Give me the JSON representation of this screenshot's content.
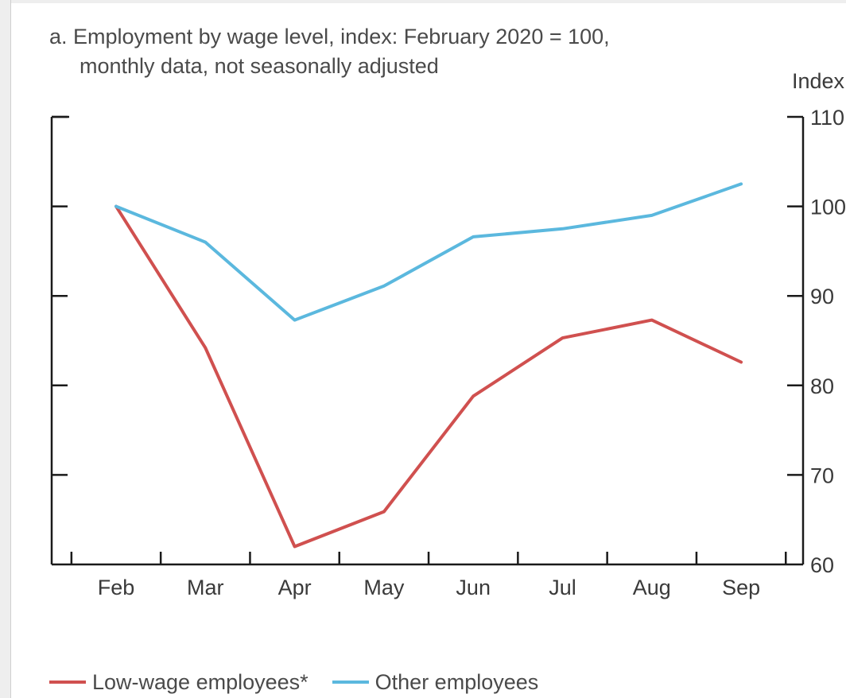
{
  "chart_data": {
    "type": "line",
    "title": "a. Employment by wage level, index: February 2020 = 100,",
    "subtitle": "monthly data, not seasonally adjusted",
    "ylabel": "Index",
    "xlabel": "",
    "categories": [
      "Feb",
      "Mar",
      "Apr",
      "May",
      "Jun",
      "Jul",
      "Aug",
      "Sep"
    ],
    "ylim": [
      60,
      110
    ],
    "yticks": [
      60,
      70,
      80,
      90,
      100,
      110
    ],
    "ytick_labels": [
      "60",
      "70",
      "80",
      "90",
      "100",
      "110"
    ],
    "axis_side": "right",
    "grid": false,
    "legend_position": "bottom",
    "series": [
      {
        "name": "Low-wage employees*",
        "color": "#d0504f",
        "values": [
          100,
          84.2,
          62,
          65.9,
          78.8,
          85.3,
          87.3,
          82.6
        ]
      },
      {
        "name": "Other employees",
        "color": "#5bb8de",
        "values": [
          100,
          96,
          87.3,
          91.1,
          96.6,
          97.5,
          99,
          102.5
        ]
      }
    ]
  }
}
